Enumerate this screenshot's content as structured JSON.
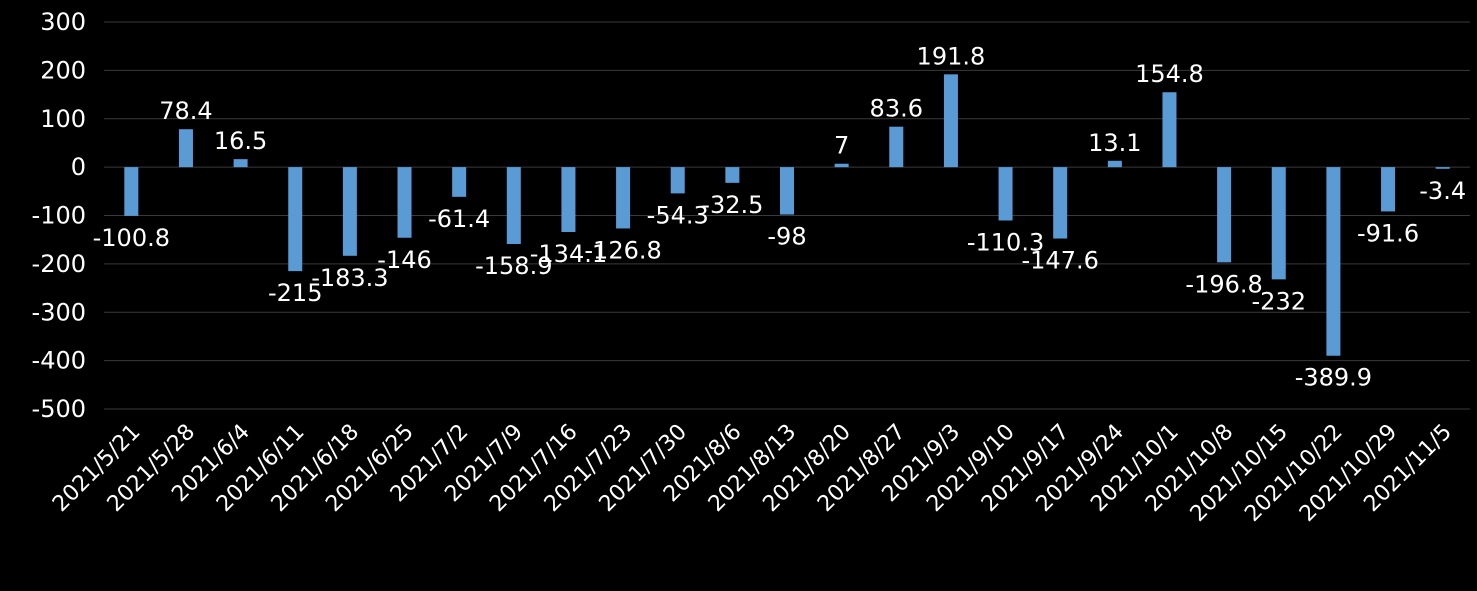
{
  "chart_data": {
    "type": "bar",
    "categories": [
      "2021/5/21",
      "2021/5/28",
      "2021/6/4",
      "2021/6/11",
      "2021/6/18",
      "2021/6/25",
      "2021/7/2",
      "2021/7/9",
      "2021/7/16",
      "2021/7/23",
      "2021/7/30",
      "2021/8/6",
      "2021/8/13",
      "2021/8/20",
      "2021/8/27",
      "2021/9/3",
      "2021/9/10",
      "2021/9/17",
      "2021/9/24",
      "2021/10/1",
      "2021/10/8",
      "2021/10/15",
      "2021/10/22",
      "2021/10/29",
      "2021/11/5"
    ],
    "values": [
      -100.8,
      78.4,
      16.5,
      -215,
      -183.3,
      -146,
      -61.4,
      -158.9,
      -134.1,
      -126.8,
      -54.3,
      -32.5,
      -98,
      7,
      83.6,
      191.8,
      -110.3,
      -147.6,
      13.1,
      154.8,
      -196.8,
      -232,
      -389.9,
      -91.6,
      -3.4
    ],
    "data_labels": [
      "-100.8",
      "78.4",
      "16.5",
      "-215",
      "-183.3",
      "-146",
      "-61.4",
      "-158.9",
      "-134.1",
      "-126.8",
      "-54.3",
      "-32.5",
      "-98",
      "7",
      "83.6",
      "191.8",
      "-110.3",
      "-147.6",
      "13.1",
      "154.8",
      "-196.8",
      "-232",
      "-389.9",
      "-91.6",
      "-3.4"
    ],
    "ylim": [
      -500,
      300
    ],
    "yticks": [
      300,
      200,
      100,
      0,
      -100,
      -200,
      -300,
      -400,
      -500
    ],
    "ytick_labels": [
      "300",
      "200",
      "100",
      "0",
      "-100",
      "-200",
      "-300",
      "-400",
      "-500"
    ],
    "grid": true,
    "legend": "none",
    "colors": {
      "background": "#000000",
      "bar": "#5b9bd5",
      "grid": "#3a3a3a",
      "text": "#ffffff"
    }
  }
}
